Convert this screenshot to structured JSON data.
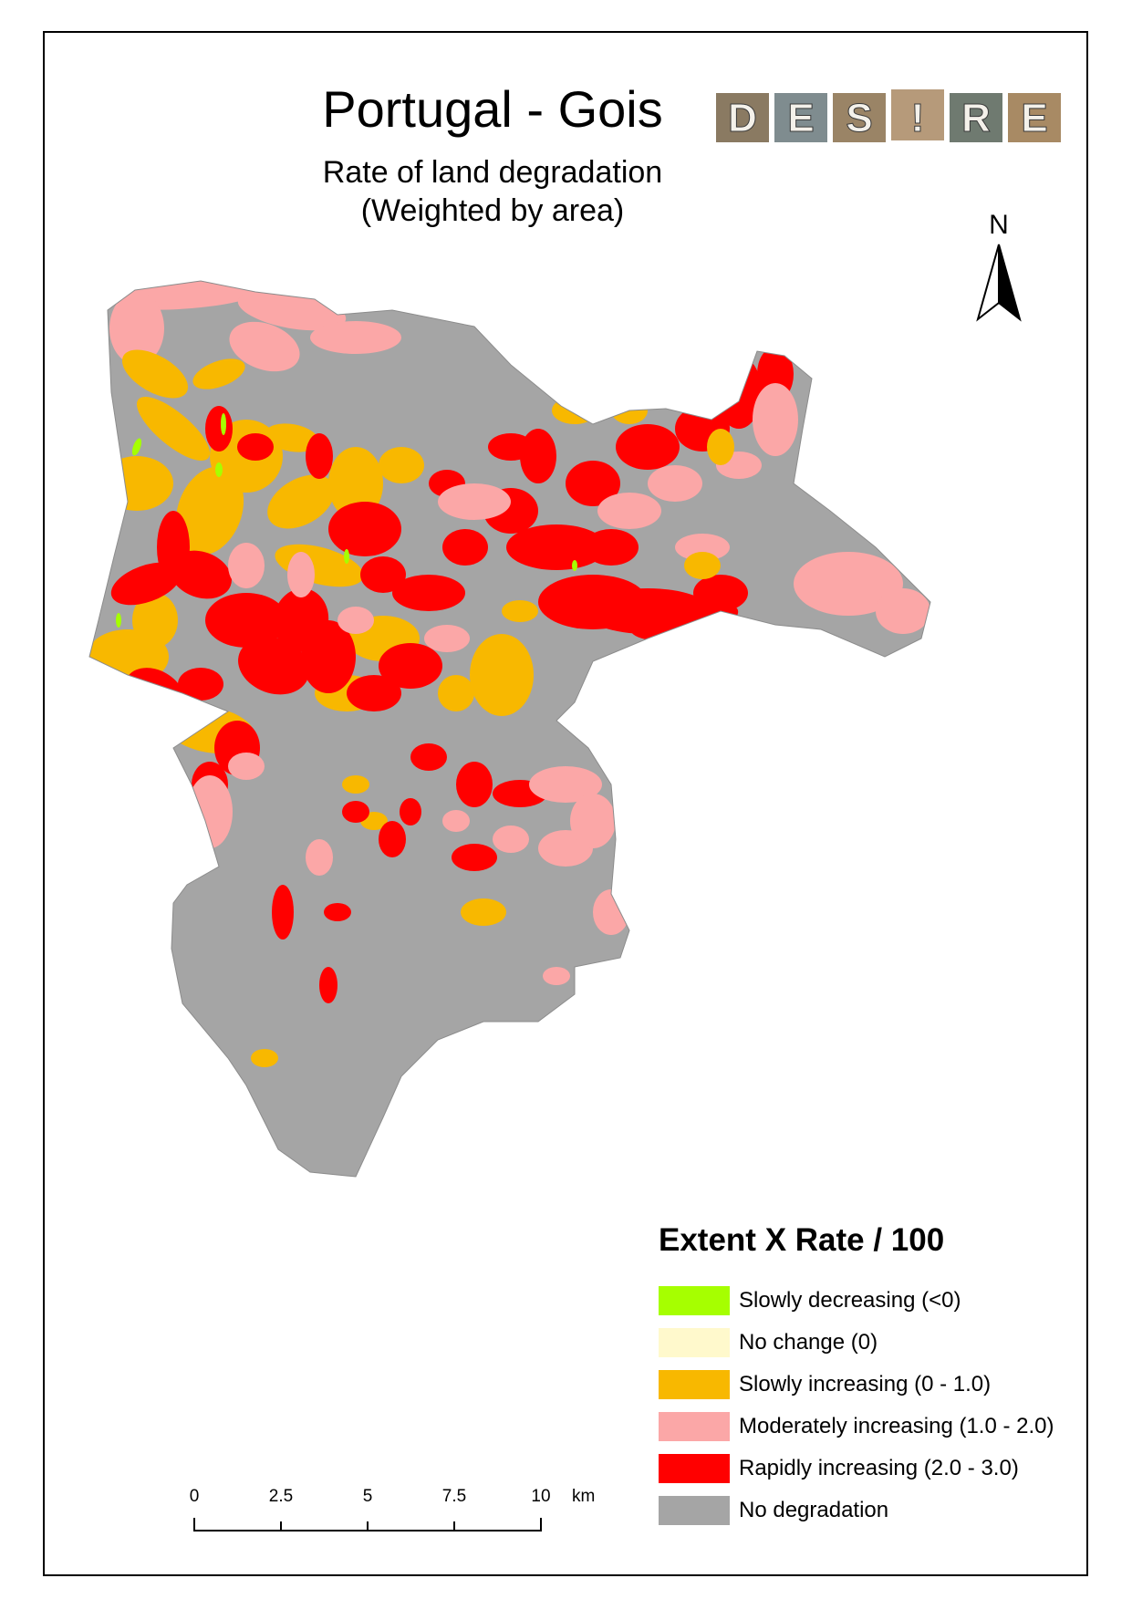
{
  "map": {
    "title": "Portugal - Gois",
    "subtitle_line1": "Rate of land degradation",
    "subtitle_line2": "(Weighted by area)",
    "north_label": "N",
    "logo_letters": [
      "D",
      "E",
      "S",
      "!",
      "R",
      "E"
    ]
  },
  "legend": {
    "title": "Extent  X  Rate / 100",
    "items": [
      {
        "label": "Slowly decreasing (<0)",
        "color": "#a6ff00"
      },
      {
        "label": "No change (0)",
        "color": "#fff9cc"
      },
      {
        "label": "Slowly increasing (0 - 1.0)",
        "color": "#f8b800"
      },
      {
        "label": "Moderately increasing (1.0 - 2.0)",
        "color": "#fba7a7"
      },
      {
        "label": "Rapidly increasing (2.0 - 3.0)",
        "color": "#ff0000"
      },
      {
        "label": "No degradation",
        "color": "#a5a5a5"
      }
    ]
  },
  "scalebar": {
    "ticks": [
      "0",
      "2.5",
      "5",
      "7.5",
      "10"
    ],
    "unit": "km"
  }
}
